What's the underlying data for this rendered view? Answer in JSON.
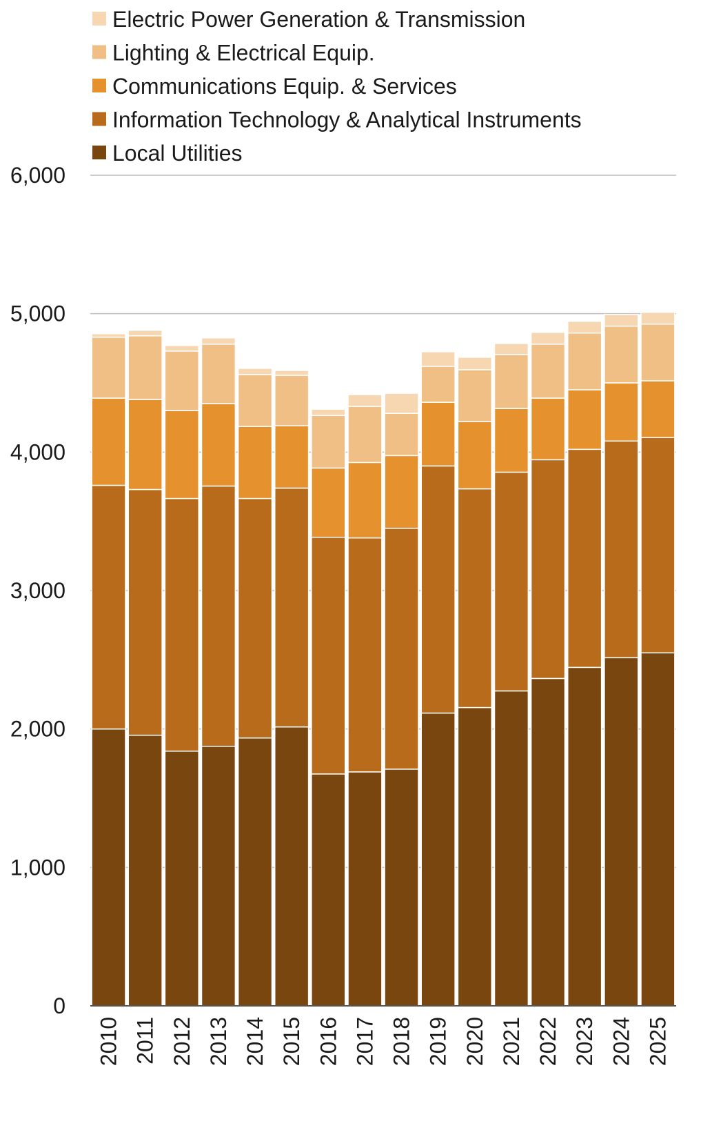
{
  "chart_data": {
    "type": "bar",
    "stacked": true,
    "title": "",
    "xlabel": "",
    "ylabel": "",
    "ylim": [
      0,
      6000
    ],
    "yticks": [
      0,
      1000,
      2000,
      3000,
      4000,
      5000,
      6000
    ],
    "ytick_labels": [
      "0",
      "1,000",
      "2,000",
      "3,000",
      "4,000",
      "5,000",
      "6,000"
    ],
    "grid": true,
    "legend_position": "top-left",
    "categories": [
      "2010",
      "2011",
      "2012",
      "2013",
      "2014",
      "2015",
      "2016",
      "2017",
      "2018",
      "2019",
      "2020",
      "2021",
      "2022",
      "2023",
      "2024",
      "2025"
    ],
    "series": [
      {
        "name": "Local Utilities",
        "color": "#7a4610",
        "values": [
          2000,
          1955,
          1840,
          1875,
          1935,
          2015,
          1675,
          1690,
          1710,
          2115,
          2155,
          2275,
          2365,
          2445,
          2515,
          2550
        ]
      },
      {
        "name": "Information Technology & Analytical Instruments",
        "color": "#b86b1a",
        "values": [
          1760,
          1775,
          1825,
          1880,
          1730,
          1725,
          1710,
          1690,
          1740,
          1785,
          1580,
          1580,
          1580,
          1575,
          1565,
          1555
        ]
      },
      {
        "name": "Communications Equip. & Services",
        "color": "#e5912e",
        "values": [
          630,
          650,
          635,
          595,
          520,
          450,
          500,
          545,
          525,
          460,
          485,
          460,
          445,
          430,
          420,
          410
        ]
      },
      {
        "name": "Lighting & Electrical Equip.",
        "color": "#efbf85",
        "values": [
          440,
          460,
          430,
          430,
          375,
          365,
          380,
          405,
          305,
          260,
          375,
          390,
          390,
          410,
          410,
          410
        ]
      },
      {
        "name": "Electric Power Generation & Transmission",
        "color": "#f6d7b1",
        "values": [
          25,
          40,
          40,
          45,
          45,
          35,
          45,
          85,
          145,
          105,
          90,
          80,
          85,
          85,
          85,
          85
        ]
      }
    ]
  }
}
